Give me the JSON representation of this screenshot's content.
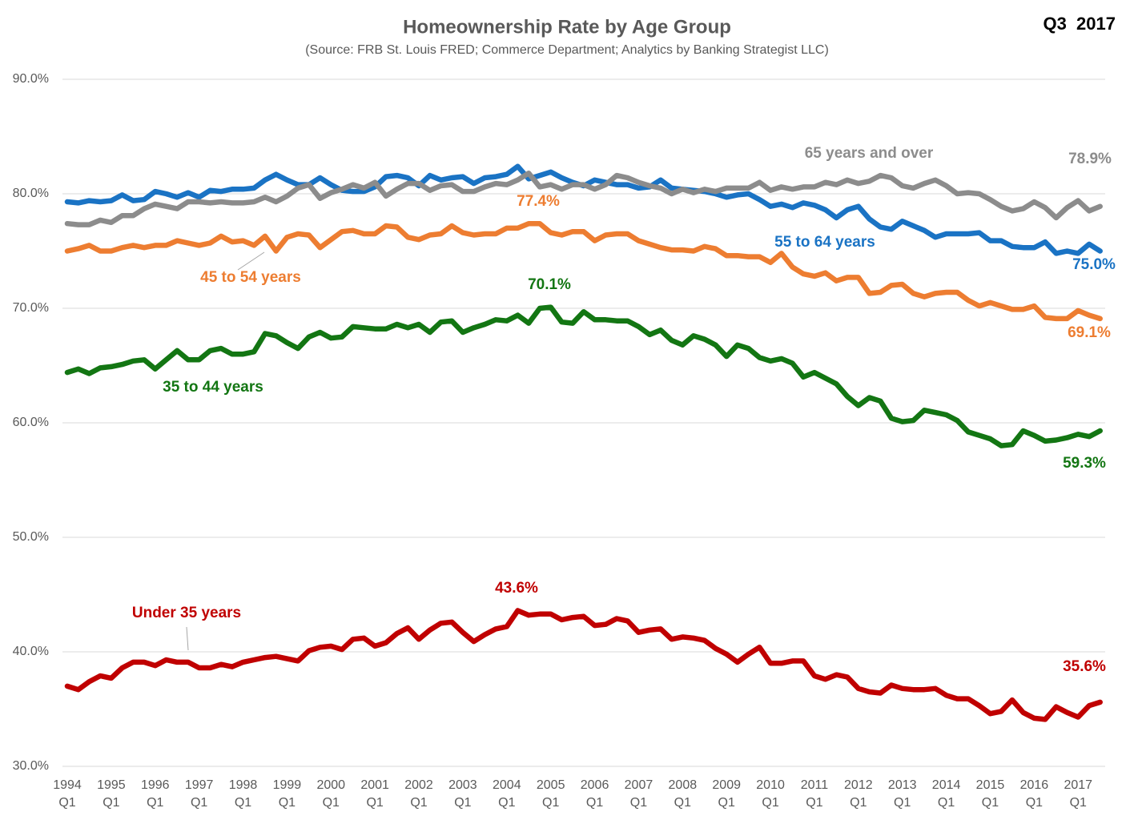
{
  "chart_data": {
    "type": "line",
    "title": "Homeownership Rate by Age Group",
    "subtitle": "(Source: FRB St. Louis FRED; Commerce Department; Analytics by Banking Strategist LLC)",
    "period": "Q3  2017",
    "categories": [
      "1994 Q1",
      null,
      null,
      null,
      "1995 Q1",
      null,
      null,
      null,
      "1996 Q1",
      null,
      null,
      null,
      "1997 Q1",
      null,
      null,
      null,
      "1998 Q1",
      null,
      null,
      null,
      "1999 Q1",
      null,
      null,
      null,
      "2000 Q1",
      null,
      null,
      null,
      "2001 Q1",
      null,
      null,
      null,
      "2002 Q1",
      null,
      null,
      null,
      "2003 Q1",
      null,
      null,
      null,
      "2004 Q1",
      null,
      null,
      null,
      "2005 Q1",
      null,
      null,
      null,
      "2006 Q1",
      null,
      null,
      null,
      "2007 Q1",
      null,
      null,
      null,
      "2008 Q1",
      null,
      null,
      null,
      "2009 Q1",
      null,
      null,
      null,
      "2010 Q1",
      null,
      null,
      null,
      "2011 Q1",
      null,
      null,
      null,
      "2012 Q1",
      null,
      null,
      null,
      "2013 Q1",
      null,
      null,
      null,
      "2014 Q1",
      null,
      null,
      null,
      "2015 Q1",
      null,
      null,
      null,
      "2016 Q1",
      null,
      null,
      null,
      "2017 Q1",
      null,
      null
    ],
    "ylim": [
      30,
      90
    ],
    "yticks": [
      {
        "value": 30,
        "label": "30.0%"
      },
      {
        "value": 40,
        "label": "40.0%"
      },
      {
        "value": 50,
        "label": "50.0%"
      },
      {
        "value": 60,
        "label": "60.0%"
      },
      {
        "value": 70,
        "label": "70.0%"
      },
      {
        "value": 80,
        "label": "80.0%"
      },
      {
        "value": 90,
        "label": "90.0%"
      }
    ],
    "grid": true,
    "series": [
      {
        "name": "Under 35 years",
        "color": "#c00000",
        "values": [
          37.0,
          36.7,
          37.4,
          37.9,
          37.7,
          38.6,
          39.1,
          39.1,
          38.8,
          39.3,
          39.1,
          39.1,
          38.6,
          38.6,
          38.9,
          38.7,
          39.1,
          39.3,
          39.5,
          39.6,
          39.4,
          39.2,
          40.1,
          40.4,
          40.5,
          40.2,
          41.1,
          41.2,
          40.5,
          40.8,
          41.6,
          42.1,
          41.1,
          41.9,
          42.5,
          42.6,
          41.7,
          40.9,
          41.5,
          42.0,
          42.2,
          43.6,
          43.2,
          43.3,
          43.3,
          42.8,
          43.0,
          43.1,
          42.3,
          42.4,
          42.9,
          42.7,
          41.7,
          41.9,
          42.0,
          41.1,
          41.3,
          41.2,
          41.0,
          40.3,
          39.8,
          39.1,
          39.8,
          40.4,
          39.0,
          39.0,
          39.2,
          39.2,
          37.9,
          37.6,
          38.0,
          37.8,
          36.8,
          36.5,
          36.4,
          37.1,
          36.8,
          36.7,
          36.7,
          36.8,
          36.2,
          35.9,
          35.9,
          35.3,
          34.6,
          34.8,
          35.8,
          34.7,
          34.2,
          34.1,
          35.2,
          34.7,
          34.3,
          35.3,
          35.6
        ],
        "value_labels": [
          null,
          null,
          null,
          null,
          null,
          null,
          null,
          null,
          null,
          null,
          null,
          null,
          null,
          null,
          null,
          null,
          null,
          null,
          null,
          null,
          null,
          null,
          null,
          null,
          null,
          null,
          null,
          null,
          null,
          null,
          null,
          null,
          null,
          null,
          null,
          null,
          null,
          null,
          null,
          null,
          null,
          "43.6%",
          null,
          null,
          null,
          null,
          null,
          null,
          null,
          null,
          null,
          null,
          null,
          null,
          null,
          null,
          null,
          null,
          null,
          null,
          null,
          null,
          null,
          null,
          null,
          null,
          null,
          null,
          null,
          null,
          null,
          null,
          null,
          null,
          null,
          null,
          null,
          null,
          null,
          null,
          null,
          null,
          null,
          null,
          null,
          null,
          null,
          null,
          null,
          null,
          null,
          null,
          null,
          null,
          "35.6%"
        ]
      },
      {
        "name": "35 to 44 years",
        "color": "#137613",
        "values": [
          64.4,
          64.7,
          64.3,
          64.8,
          64.9,
          65.1,
          65.4,
          65.5,
          64.7,
          65.5,
          66.3,
          65.5,
          65.5,
          66.3,
          66.5,
          66.0,
          66.0,
          66.2,
          67.8,
          67.6,
          67.0,
          66.5,
          67.5,
          67.9,
          67.4,
          67.5,
          68.4,
          68.3,
          68.2,
          68.2,
          68.6,
          68.3,
          68.6,
          67.9,
          68.8,
          68.9,
          67.9,
          68.3,
          68.6,
          69.0,
          68.9,
          69.4,
          68.7,
          70.0,
          70.1,
          68.8,
          68.7,
          69.7,
          69.0,
          69.0,
          68.9,
          68.9,
          68.4,
          67.7,
          68.1,
          67.2,
          66.8,
          67.6,
          67.3,
          66.8,
          65.8,
          66.8,
          66.5,
          65.7,
          65.4,
          65.6,
          65.2,
          64.0,
          64.4,
          63.9,
          63.4,
          62.3,
          61.5,
          62.2,
          61.9,
          60.4,
          60.1,
          60.2,
          61.1,
          60.9,
          60.7,
          60.2,
          59.2,
          58.9,
          58.6,
          58.0,
          58.1,
          59.3,
          58.9,
          58.4,
          58.5,
          58.7,
          59.0,
          58.8,
          59.3
        ],
        "value_labels": [
          null,
          null,
          null,
          null,
          null,
          null,
          null,
          null,
          null,
          null,
          null,
          null,
          null,
          null,
          null,
          null,
          null,
          null,
          null,
          null,
          null,
          null,
          null,
          null,
          null,
          null,
          null,
          null,
          null,
          null,
          null,
          null,
          null,
          null,
          null,
          null,
          null,
          null,
          null,
          null,
          null,
          null,
          null,
          null,
          "70.1%",
          null,
          null,
          null,
          null,
          null,
          null,
          null,
          null,
          null,
          null,
          null,
          null,
          null,
          null,
          null,
          null,
          null,
          null,
          null,
          null,
          null,
          null,
          null,
          null,
          null,
          null,
          null,
          null,
          null,
          null,
          null,
          null,
          null,
          null,
          null,
          null,
          null,
          null,
          null,
          null,
          null,
          null,
          null,
          null,
          null,
          null,
          null,
          null,
          null,
          "59.3%"
        ]
      },
      {
        "name": "45 to 54 years",
        "color": "#ed7d31",
        "values": [
          75.0,
          75.2,
          75.5,
          75.0,
          75.0,
          75.3,
          75.5,
          75.3,
          75.5,
          75.5,
          75.9,
          75.7,
          75.5,
          75.7,
          76.3,
          75.8,
          75.9,
          75.5,
          76.3,
          75.0,
          76.2,
          76.5,
          76.4,
          75.3,
          76.0,
          76.7,
          76.8,
          76.5,
          76.5,
          77.2,
          77.1,
          76.2,
          76.0,
          76.4,
          76.5,
          77.2,
          76.6,
          76.4,
          76.5,
          76.5,
          77.0,
          77.0,
          77.4,
          77.4,
          76.6,
          76.4,
          76.7,
          76.7,
          75.9,
          76.4,
          76.5,
          76.5,
          75.9,
          75.6,
          75.3,
          75.1,
          75.1,
          75.0,
          75.4,
          75.2,
          74.6,
          74.6,
          74.5,
          74.5,
          74.0,
          74.8,
          73.6,
          73.0,
          72.8,
          73.1,
          72.4,
          72.7,
          72.7,
          71.3,
          71.4,
          72.0,
          72.1,
          71.3,
          71.0,
          71.3,
          71.4,
          71.4,
          70.7,
          70.2,
          70.5,
          70.2,
          69.9,
          69.9,
          70.2,
          69.2,
          69.1,
          69.1,
          69.8,
          69.4,
          69.1
        ],
        "value_labels": [
          null,
          null,
          null,
          null,
          null,
          null,
          null,
          null,
          null,
          null,
          null,
          null,
          null,
          null,
          null,
          null,
          null,
          null,
          null,
          null,
          null,
          null,
          null,
          null,
          null,
          null,
          null,
          null,
          null,
          null,
          null,
          null,
          null,
          null,
          null,
          null,
          null,
          null,
          null,
          null,
          null,
          null,
          null,
          "77.4%",
          null,
          null,
          null,
          null,
          null,
          null,
          null,
          null,
          null,
          null,
          null,
          null,
          null,
          null,
          null,
          null,
          null,
          null,
          null,
          null,
          null,
          null,
          null,
          null,
          null,
          null,
          null,
          null,
          null,
          null,
          null,
          null,
          null,
          null,
          null,
          null,
          null,
          null,
          null,
          null,
          null,
          null,
          null,
          null,
          null,
          null,
          null,
          null,
          null,
          null,
          "69.1%"
        ]
      },
      {
        "name": "55 to 64 years",
        "color": "#1a73c4",
        "values": [
          79.3,
          79.2,
          79.4,
          79.3,
          79.4,
          79.9,
          79.4,
          79.5,
          80.2,
          80.0,
          79.7,
          80.1,
          79.7,
          80.3,
          80.2,
          80.4,
          80.4,
          80.5,
          81.2,
          81.7,
          81.2,
          80.8,
          80.8,
          81.4,
          80.8,
          80.3,
          80.2,
          80.2,
          80.6,
          81.5,
          81.6,
          81.4,
          80.7,
          81.6,
          81.2,
          81.4,
          81.5,
          80.9,
          81.4,
          81.5,
          81.7,
          82.4,
          81.3,
          81.6,
          81.9,
          81.4,
          81.0,
          80.7,
          81.2,
          81.0,
          80.8,
          80.8,
          80.5,
          80.6,
          81.2,
          80.5,
          80.4,
          80.3,
          80.2,
          80.0,
          79.7,
          79.9,
          80.0,
          79.5,
          78.9,
          79.1,
          78.8,
          79.2,
          79.0,
          78.6,
          77.9,
          78.6,
          78.9,
          77.8,
          77.1,
          76.9,
          77.6,
          77.2,
          76.8,
          76.2,
          76.5,
          76.5,
          76.5,
          76.6,
          75.9,
          75.9,
          75.4,
          75.3,
          75.3,
          75.8,
          74.8,
          75.0,
          74.8,
          75.6,
          75.0
        ],
        "value_labels": [
          null,
          null,
          null,
          null,
          null,
          null,
          null,
          null,
          null,
          null,
          null,
          null,
          null,
          null,
          null,
          null,
          null,
          null,
          null,
          null,
          null,
          null,
          null,
          null,
          null,
          null,
          null,
          null,
          null,
          null,
          null,
          null,
          null,
          null,
          null,
          null,
          null,
          null,
          null,
          null,
          null,
          null,
          null,
          null,
          null,
          null,
          null,
          null,
          null,
          null,
          null,
          null,
          null,
          null,
          null,
          null,
          null,
          null,
          null,
          null,
          null,
          null,
          null,
          null,
          null,
          null,
          null,
          null,
          null,
          null,
          null,
          null,
          null,
          null,
          null,
          null,
          null,
          null,
          null,
          null,
          null,
          null,
          null,
          null,
          null,
          null,
          null,
          null,
          null,
          null,
          null,
          null,
          null,
          null,
          "75.0%"
        ]
      },
      {
        "name": "65 years and over",
        "color": "#8c8c8c",
        "values": [
          77.4,
          77.3,
          77.3,
          77.7,
          77.5,
          78.1,
          78.1,
          78.7,
          79.1,
          78.9,
          78.7,
          79.3,
          79.3,
          79.2,
          79.3,
          79.2,
          79.2,
          79.3,
          79.7,
          79.3,
          79.8,
          80.5,
          80.8,
          79.6,
          80.1,
          80.4,
          80.8,
          80.5,
          81.0,
          79.8,
          80.4,
          80.9,
          80.9,
          80.3,
          80.7,
          80.8,
          80.2,
          80.2,
          80.6,
          80.9,
          80.8,
          81.2,
          81.8,
          80.6,
          80.8,
          80.4,
          80.8,
          80.8,
          80.4,
          80.8,
          81.6,
          81.4,
          81.0,
          80.7,
          80.5,
          80.0,
          80.4,
          80.1,
          80.4,
          80.2,
          80.5,
          80.5,
          80.5,
          81.0,
          80.3,
          80.6,
          80.4,
          80.6,
          80.6,
          81.0,
          80.8,
          81.2,
          80.9,
          81.1,
          81.6,
          81.4,
          80.7,
          80.5,
          80.9,
          81.2,
          80.7,
          80.0,
          80.1,
          80.0,
          79.5,
          78.9,
          78.5,
          78.7,
          79.3,
          78.8,
          77.9,
          78.8,
          79.4,
          78.5,
          78.9
        ],
        "value_labels": [
          null,
          null,
          null,
          null,
          null,
          null,
          null,
          null,
          null,
          null,
          null,
          null,
          null,
          null,
          null,
          null,
          null,
          null,
          null,
          null,
          null,
          null,
          null,
          null,
          null,
          null,
          null,
          null,
          null,
          null,
          null,
          null,
          null,
          null,
          null,
          null,
          null,
          null,
          null,
          null,
          null,
          null,
          null,
          null,
          null,
          null,
          null,
          null,
          null,
          null,
          null,
          null,
          null,
          null,
          null,
          null,
          null,
          null,
          null,
          null,
          null,
          null,
          null,
          null,
          null,
          null,
          null,
          null,
          null,
          null,
          null,
          null,
          null,
          null,
          null,
          null,
          null,
          null,
          null,
          null,
          null,
          null,
          null,
          null,
          null,
          null,
          null,
          null,
          null,
          null,
          null,
          null,
          null,
          null,
          "78.9%"
        ]
      }
    ]
  }
}
